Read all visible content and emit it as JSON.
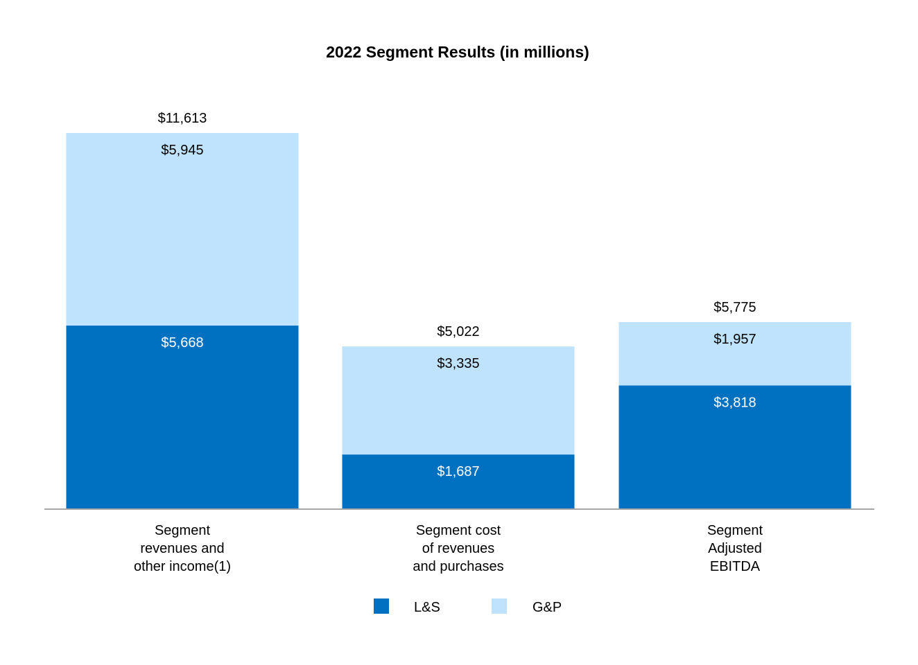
{
  "chart_data": {
    "type": "bar",
    "stacked": true,
    "title": "2022 Segment Results (in millions)",
    "categories": [
      [
        "Segment",
        "revenues and",
        "other income(1)"
      ],
      [
        "Segment cost",
        "of revenues",
        "and purchases"
      ],
      [
        "Segment",
        "Adjusted",
        "EBITDA"
      ]
    ],
    "series": [
      {
        "name": "L&S",
        "color": "#0070C0",
        "values": [
          5668,
          1687,
          3818
        ],
        "value_labels": [
          "$5,668",
          "$1,687",
          "$3,818"
        ]
      },
      {
        "name": "G&P",
        "color": "#BFE3FC",
        "values": [
          5945,
          3335,
          1957
        ],
        "value_labels": [
          "$5,945",
          "$3,335",
          "$1,957"
        ]
      }
    ],
    "totals": [
      11613,
      5022,
      5775
    ],
    "total_labels": [
      "$11,613",
      "$5,022",
      "$5,775"
    ],
    "ylim": [
      0,
      11613
    ],
    "xlabel": "",
    "ylabel": "",
    "grid": false,
    "legend": "bottom-center",
    "axis_color": "#A6A6A6"
  }
}
